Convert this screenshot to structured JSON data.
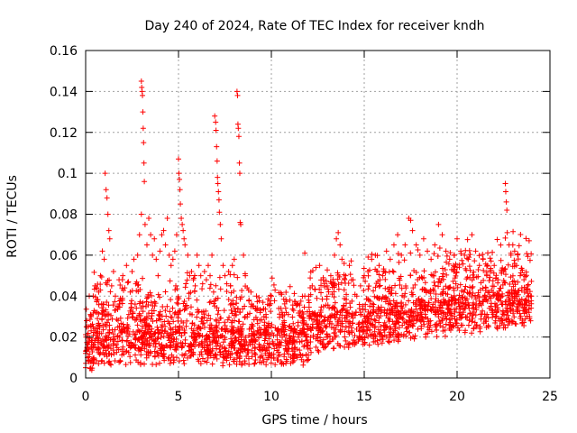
{
  "chart_data": {
    "type": "scatter",
    "title": "Day 240 of 2024, Rate Of TEC Index for receiver kndh",
    "xlabel": "GPS time / hours",
    "ylabel": "ROTI / TECUs",
    "xlim": [
      0,
      25
    ],
    "ylim": [
      0,
      0.16
    ],
    "xticks": [
      0,
      5,
      10,
      15,
      20,
      25
    ],
    "xtick_labels": [
      "0",
      "5",
      "10",
      "15",
      "20",
      "25"
    ],
    "yticks": [
      0,
      0.02,
      0.04,
      0.06,
      0.08,
      0.1,
      0.12,
      0.14,
      0.16
    ],
    "ytick_labels": [
      "0",
      "0.02",
      "0.04",
      "0.06",
      "0.08",
      "0.1",
      "0.12",
      "0.14",
      "0.16"
    ],
    "grid": true,
    "marker": "+",
    "series_color": "#ff0000",
    "points": [
      [
        0.0,
        0.005
      ],
      [
        0.0,
        0.012
      ],
      [
        0.02,
        0.02
      ],
      [
        0.05,
        0.028
      ],
      [
        0.08,
        0.015
      ],
      [
        0.1,
        0.01
      ],
      [
        0.15,
        0.025
      ],
      [
        0.2,
        0.018
      ],
      [
        0.25,
        0.008
      ],
      [
        0.3,
        0.03
      ],
      [
        0.5,
        0.045
      ],
      [
        0.6,
        0.038
      ],
      [
        0.7,
        0.042
      ],
      [
        0.8,
        0.05
      ],
      [
        0.9,
        0.062
      ],
      [
        1.0,
        0.058
      ],
      [
        1.05,
        0.1
      ],
      [
        1.1,
        0.092
      ],
      [
        1.15,
        0.088
      ],
      [
        1.2,
        0.08
      ],
      [
        1.25,
        0.072
      ],
      [
        1.3,
        0.068
      ],
      [
        1.4,
        0.045
      ],
      [
        1.5,
        0.052
      ],
      [
        1.6,
        0.04
      ],
      [
        1.7,
        0.035
      ],
      [
        1.8,
        0.048
      ],
      [
        1.9,
        0.038
      ],
      [
        2.0,
        0.05
      ],
      [
        2.1,
        0.044
      ],
      [
        2.2,
        0.055
      ],
      [
        2.3,
        0.047
      ],
      [
        2.4,
        0.042
      ],
      [
        2.5,
        0.052
      ],
      [
        2.6,
        0.058
      ],
      [
        2.7,
        0.046
      ],
      [
        2.8,
        0.06
      ],
      [
        2.9,
        0.07
      ],
      [
        3.0,
        0.145
      ],
      [
        3.02,
        0.142
      ],
      [
        3.04,
        0.14
      ],
      [
        3.06,
        0.138
      ],
      [
        3.08,
        0.13
      ],
      [
        3.1,
        0.122
      ],
      [
        3.12,
        0.115
      ],
      [
        3.14,
        0.105
      ],
      [
        3.16,
        0.096
      ],
      [
        3.0,
        0.08
      ],
      [
        3.2,
        0.075
      ],
      [
        3.3,
        0.065
      ],
      [
        3.4,
        0.078
      ],
      [
        3.5,
        0.07
      ],
      [
        3.6,
        0.06
      ],
      [
        3.7,
        0.068
      ],
      [
        3.8,
        0.058
      ],
      [
        3.9,
        0.05
      ],
      [
        4.0,
        0.062
      ],
      [
        4.1,
        0.07
      ],
      [
        4.2,
        0.072
      ],
      [
        4.3,
        0.065
      ],
      [
        4.4,
        0.078
      ],
      [
        4.5,
        0.06
      ],
      [
        4.6,
        0.055
      ],
      [
        4.7,
        0.058
      ],
      [
        4.8,
        0.062
      ],
      [
        4.9,
        0.07
      ],
      [
        5.0,
        0.107
      ],
      [
        5.02,
        0.1
      ],
      [
        5.05,
        0.097
      ],
      [
        5.08,
        0.092
      ],
      [
        5.1,
        0.085
      ],
      [
        5.15,
        0.078
      ],
      [
        5.2,
        0.075
      ],
      [
        5.25,
        0.072
      ],
      [
        5.3,
        0.068
      ],
      [
        5.35,
        0.065
      ],
      [
        5.5,
        0.06
      ],
      [
        5.6,
        0.05
      ],
      [
        5.7,
        0.052
      ],
      [
        5.8,
        0.048
      ],
      [
        5.9,
        0.045
      ],
      [
        6.0,
        0.06
      ],
      [
        6.1,
        0.055
      ],
      [
        6.2,
        0.05
      ],
      [
        6.3,
        0.046
      ],
      [
        6.4,
        0.052
      ],
      [
        6.5,
        0.048
      ],
      [
        6.6,
        0.055
      ],
      [
        6.7,
        0.05
      ],
      [
        6.8,
        0.06
      ],
      [
        6.95,
        0.128
      ],
      [
        7.0,
        0.125
      ],
      [
        7.02,
        0.121
      ],
      [
        7.05,
        0.113
      ],
      [
        7.08,
        0.106
      ],
      [
        7.1,
        0.098
      ],
      [
        7.12,
        0.095
      ],
      [
        7.15,
        0.091
      ],
      [
        7.18,
        0.087
      ],
      [
        7.2,
        0.081
      ],
      [
        7.25,
        0.075
      ],
      [
        7.3,
        0.068
      ],
      [
        7.4,
        0.055
      ],
      [
        7.5,
        0.05
      ],
      [
        7.6,
        0.046
      ],
      [
        7.7,
        0.052
      ],
      [
        7.8,
        0.045
      ],
      [
        7.9,
        0.055
      ],
      [
        8.0,
        0.058
      ],
      [
        8.15,
        0.14
      ],
      [
        8.18,
        0.138
      ],
      [
        8.2,
        0.124
      ],
      [
        8.22,
        0.122
      ],
      [
        8.25,
        0.118
      ],
      [
        8.28,
        0.105
      ],
      [
        8.3,
        0.1
      ],
      [
        8.32,
        0.076
      ],
      [
        8.35,
        0.075
      ],
      [
        8.5,
        0.06
      ],
      [
        8.6,
        0.05
      ],
      [
        8.7,
        0.044
      ],
      [
        8.8,
        0.038
      ],
      [
        8.9,
        0.042
      ],
      [
        9.0,
        0.035
      ],
      [
        9.2,
        0.04
      ],
      [
        9.4,
        0.032
      ],
      [
        9.6,
        0.03
      ],
      [
        9.8,
        0.036
      ],
      [
        10.0,
        0.04
      ],
      [
        10.2,
        0.043
      ],
      [
        10.4,
        0.034
      ],
      [
        10.6,
        0.03
      ],
      [
        10.8,
        0.032
      ],
      [
        11.0,
        0.038
      ],
      [
        11.2,
        0.033
      ],
      [
        11.4,
        0.036
      ],
      [
        11.6,
        0.03
      ],
      [
        11.8,
        0.04
      ],
      [
        12.0,
        0.038
      ],
      [
        12.2,
        0.045
      ],
      [
        12.4,
        0.054
      ],
      [
        11.8,
        0.061
      ],
      [
        12.6,
        0.055
      ],
      [
        12.8,
        0.048
      ],
      [
        13.0,
        0.045
      ],
      [
        13.2,
        0.05
      ],
      [
        13.4,
        0.06
      ],
      [
        13.5,
        0.068
      ],
      [
        13.6,
        0.071
      ],
      [
        13.7,
        0.065
      ],
      [
        13.8,
        0.058
      ],
      [
        14.0,
        0.05
      ],
      [
        14.2,
        0.055
      ],
      [
        14.4,
        0.048
      ],
      [
        14.6,
        0.04
      ],
      [
        14.8,
        0.045
      ],
      [
        15.0,
        0.05
      ],
      [
        15.2,
        0.052
      ],
      [
        15.4,
        0.058
      ],
      [
        15.6,
        0.06
      ],
      [
        15.8,
        0.055
      ],
      [
        16.0,
        0.05
      ],
      [
        16.2,
        0.062
      ],
      [
        16.4,
        0.058
      ],
      [
        16.6,
        0.065
      ],
      [
        16.8,
        0.07
      ],
      [
        17.0,
        0.06
      ],
      [
        17.2,
        0.065
      ],
      [
        17.4,
        0.078
      ],
      [
        17.5,
        0.077
      ],
      [
        17.6,
        0.072
      ],
      [
        17.8,
        0.065
      ],
      [
        18.0,
        0.06
      ],
      [
        18.2,
        0.068
      ],
      [
        18.4,
        0.062
      ],
      [
        18.6,
        0.058
      ],
      [
        18.8,
        0.065
      ],
      [
        19.0,
        0.075
      ],
      [
        19.2,
        0.07
      ],
      [
        19.4,
        0.062
      ],
      [
        19.6,
        0.058
      ],
      [
        19.8,
        0.055
      ],
      [
        20.0,
        0.068
      ],
      [
        20.2,
        0.062
      ],
      [
        20.4,
        0.06
      ],
      [
        20.6,
        0.058
      ],
      [
        20.8,
        0.07
      ],
      [
        21.0,
        0.062
      ],
      [
        21.2,
        0.055
      ],
      [
        21.4,
        0.058
      ],
      [
        21.6,
        0.05
      ],
      [
        21.8,
        0.052
      ],
      [
        22.0,
        0.055
      ],
      [
        22.2,
        0.048
      ],
      [
        22.4,
        0.052
      ],
      [
        22.6,
        0.095
      ],
      [
        22.62,
        0.091
      ],
      [
        22.65,
        0.086
      ],
      [
        22.68,
        0.082
      ],
      [
        22.7,
        0.071
      ],
      [
        22.8,
        0.065
      ],
      [
        22.9,
        0.06
      ],
      [
        23.0,
        0.065
      ],
      [
        23.1,
        0.062
      ],
      [
        23.2,
        0.055
      ],
      [
        23.4,
        0.05
      ],
      [
        23.6,
        0.048
      ],
      [
        23.8,
        0.045
      ],
      [
        24.0,
        0.04
      ]
    ]
  }
}
